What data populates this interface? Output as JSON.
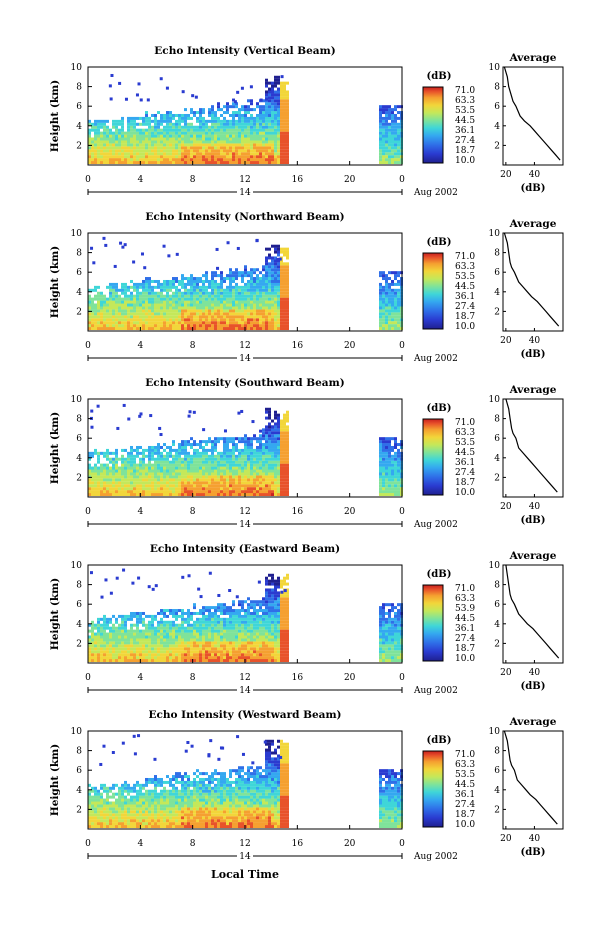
{
  "x_axis_label": "Local Time",
  "colors": {
    "scale": [
      "#1f1f8f",
      "#2a3bd0",
      "#2f6fe8",
      "#34a8f0",
      "#3fd6d8",
      "#7fe39a",
      "#c4e85a",
      "#f2d63a",
      "#f5a030",
      "#e8522a",
      "#c81f1f"
    ],
    "axis": "#000000"
  },
  "chart_data": [
    {
      "type": "heatmap",
      "title": "Echo Intensity (Vertical Beam)",
      "ylabel": "Height (km)",
      "y_ticks": [
        "2",
        "4",
        "6",
        "8",
        "10"
      ],
      "x_ticks": [
        "0",
        "4",
        "8",
        "12",
        "16",
        "20",
        "0"
      ],
      "date_label": "14",
      "month_year": "Aug 2002",
      "ylim": [
        0,
        10
      ],
      "xlim": [
        0,
        24
      ],
      "colorbar": {
        "unit": "(dB)",
        "labels": [
          "71.0",
          "63.3",
          "53.5",
          "44.5",
          "36.1",
          "27.4",
          "18.7",
          "10.0"
        ]
      },
      "average": {
        "title": "Average",
        "xlabel": "(dB)",
        "x_ticks": [
          "20",
          "40"
        ],
        "y_ticks": [
          "2",
          "4",
          "6",
          "8",
          "10"
        ],
        "profile": [
          [
            58,
            0.5
          ],
          [
            55,
            1
          ],
          [
            52,
            1.5
          ],
          [
            49,
            2
          ],
          [
            46,
            2.5
          ],
          [
            43,
            3
          ],
          [
            40,
            3.5
          ],
          [
            37,
            4
          ],
          [
            33,
            4.5
          ],
          [
            30,
            5
          ],
          [
            27,
            6
          ],
          [
            25,
            6.5
          ],
          [
            24,
            7
          ],
          [
            22,
            8
          ],
          [
            21,
            9
          ],
          [
            19,
            10
          ]
        ]
      }
    },
    {
      "type": "heatmap",
      "title": "Echo Intensity (Northward Beam)",
      "ylabel": "Height (km)",
      "y_ticks": [
        "2",
        "4",
        "6",
        "8",
        "10"
      ],
      "x_ticks": [
        "0",
        "4",
        "8",
        "12",
        "16",
        "20",
        "0"
      ],
      "date_label": "14",
      "month_year": "Aug 2002",
      "ylim": [
        0,
        10
      ],
      "xlim": [
        0,
        24
      ],
      "colorbar": {
        "unit": "(dB)",
        "labels": [
          "71.0",
          "63.3",
          "53.5",
          "44.5",
          "36.1",
          "27.4",
          "18.7",
          "10.0"
        ]
      },
      "average": {
        "title": "Average",
        "xlabel": "(dB)",
        "x_ticks": [
          "20",
          "40"
        ],
        "y_ticks": [
          "2",
          "4",
          "6",
          "8",
          "10"
        ],
        "profile": [
          [
            57,
            0.5
          ],
          [
            54,
            1
          ],
          [
            51,
            1.5
          ],
          [
            48,
            2
          ],
          [
            45,
            2.5
          ],
          [
            42,
            3
          ],
          [
            38,
            3.5
          ],
          [
            35,
            4
          ],
          [
            32,
            4.5
          ],
          [
            29,
            5
          ],
          [
            26,
            6
          ],
          [
            24,
            6.5
          ],
          [
            23,
            7
          ],
          [
            22,
            8
          ],
          [
            21,
            9
          ],
          [
            19,
            10
          ]
        ]
      }
    },
    {
      "type": "heatmap",
      "title": "Echo Intensity (Southward Beam)",
      "ylabel": "Height (km)",
      "y_ticks": [
        "2",
        "4",
        "6",
        "8",
        "10"
      ],
      "x_ticks": [
        "0",
        "4",
        "8",
        "12",
        "16",
        "20",
        "0"
      ],
      "date_label": "14",
      "month_year": "Aug 2002",
      "ylim": [
        0,
        10
      ],
      "xlim": [
        0,
        24
      ],
      "colorbar": {
        "unit": "(dB)",
        "labels": [
          "71.0",
          "63.3",
          "53.5",
          "44.5",
          "36.1",
          "27.4",
          "18.7",
          "10.0"
        ]
      },
      "average": {
        "title": "Average",
        "xlabel": "(dB)",
        "x_ticks": [
          "20",
          "40"
        ],
        "y_ticks": [
          "2",
          "4",
          "6",
          "8",
          "10"
        ],
        "profile": [
          [
            56,
            0.5
          ],
          [
            53,
            1
          ],
          [
            50,
            1.5
          ],
          [
            47,
            2
          ],
          [
            44,
            2.5
          ],
          [
            41,
            3
          ],
          [
            38,
            3.5
          ],
          [
            35,
            4
          ],
          [
            32,
            4.5
          ],
          [
            29,
            5
          ],
          [
            27,
            6
          ],
          [
            25,
            6.5
          ],
          [
            24,
            7
          ],
          [
            23,
            8
          ],
          [
            22,
            9
          ],
          [
            20,
            10
          ]
        ]
      }
    },
    {
      "type": "heatmap",
      "title": "Echo Intensity (Eastward Beam)",
      "ylabel": "Height (km)",
      "y_ticks": [
        "2",
        "4",
        "6",
        "8",
        "10"
      ],
      "x_ticks": [
        "0",
        "4",
        "8",
        "12",
        "16",
        "20",
        "0"
      ],
      "date_label": "14",
      "month_year": "Aug 2002",
      "ylim": [
        0,
        10
      ],
      "xlim": [
        0,
        24
      ],
      "colorbar": {
        "unit": "(dB)",
        "labels": [
          "71.0",
          "63.3",
          "53.9",
          "44.5",
          "36.1",
          "27.4",
          "18.7",
          "10.0"
        ]
      },
      "average": {
        "title": "Average",
        "xlabel": "(dB)",
        "x_ticks": [
          "20",
          "40"
        ],
        "y_ticks": [
          "2",
          "4",
          "6",
          "8",
          "10"
        ],
        "profile": [
          [
            57,
            0.5
          ],
          [
            54,
            1
          ],
          [
            51,
            1.5
          ],
          [
            48,
            2
          ],
          [
            45,
            2.5
          ],
          [
            42,
            3
          ],
          [
            39,
            3.5
          ],
          [
            35,
            4
          ],
          [
            32,
            4.5
          ],
          [
            29,
            5
          ],
          [
            26,
            6
          ],
          [
            24,
            6.5
          ],
          [
            23,
            7
          ],
          [
            22,
            8
          ],
          [
            21,
            9
          ],
          [
            20,
            10
          ]
        ]
      }
    },
    {
      "type": "heatmap",
      "title": "Echo Intensity (Westward Beam)",
      "ylabel": "Height (km)",
      "y_ticks": [
        "2",
        "4",
        "6",
        "8",
        "10"
      ],
      "x_ticks": [
        "0",
        "4",
        "8",
        "12",
        "16",
        "20",
        "0"
      ],
      "date_label": "14",
      "month_year": "Aug 2002",
      "ylim": [
        0,
        10
      ],
      "xlim": [
        0,
        24
      ],
      "colorbar": {
        "unit": "(dB)",
        "labels": [
          "71.0",
          "63.3",
          "53.5",
          "44.5",
          "36.1",
          "27.4",
          "18.7",
          "10.0"
        ]
      },
      "average": {
        "title": "Average",
        "xlabel": "(dB)",
        "x_ticks": [
          "20",
          "40"
        ],
        "y_ticks": [
          "2",
          "4",
          "6",
          "8",
          "10"
        ],
        "profile": [
          [
            56,
            0.5
          ],
          [
            53,
            1
          ],
          [
            50,
            1.5
          ],
          [
            47,
            2
          ],
          [
            44,
            2.5
          ],
          [
            41,
            3
          ],
          [
            37,
            3.5
          ],
          [
            34,
            4
          ],
          [
            31,
            4.5
          ],
          [
            28,
            5
          ],
          [
            26,
            6
          ],
          [
            24,
            6.5
          ],
          [
            23,
            7
          ],
          [
            22,
            8
          ],
          [
            21,
            9
          ],
          [
            19,
            10
          ]
        ]
      }
    }
  ]
}
